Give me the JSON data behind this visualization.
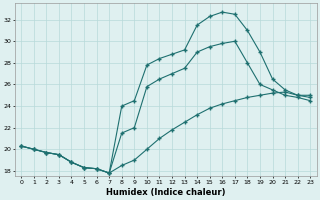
{
  "title": "",
  "xlabel": "Humidex (Indice chaleur)",
  "xlim": [
    -0.5,
    23.5
  ],
  "ylim": [
    17.5,
    33.5
  ],
  "yticks": [
    18,
    20,
    22,
    24,
    26,
    28,
    30,
    32
  ],
  "xticks": [
    0,
    1,
    2,
    3,
    4,
    5,
    6,
    7,
    8,
    9,
    10,
    11,
    12,
    13,
    14,
    15,
    16,
    17,
    18,
    19,
    20,
    21,
    22,
    23
  ],
  "background_color": "#dff0f0",
  "grid_color": "#b8dada",
  "line_color": "#1e7070",
  "line1_x": [
    0,
    1,
    2,
    3,
    4,
    5,
    6,
    7,
    8,
    9,
    10,
    11,
    12,
    13,
    14,
    15,
    16,
    17,
    18,
    19,
    20,
    21,
    22,
    23
  ],
  "line1_y": [
    20.3,
    20.0,
    19.7,
    19.5,
    18.8,
    18.3,
    18.2,
    17.8,
    18.5,
    19.0,
    20.0,
    21.0,
    21.8,
    22.5,
    23.2,
    23.8,
    24.2,
    24.5,
    24.8,
    25.0,
    25.2,
    25.3,
    25.0,
    25.0
  ],
  "line2_x": [
    0,
    1,
    2,
    3,
    4,
    5,
    6,
    7,
    8,
    9,
    10,
    11,
    12,
    13,
    14,
    15,
    16,
    17,
    18,
    19,
    20,
    21,
    22,
    23
  ],
  "line2_y": [
    20.3,
    20.0,
    19.7,
    19.5,
    18.8,
    18.3,
    18.2,
    17.8,
    24.0,
    24.5,
    27.8,
    28.4,
    28.8,
    29.2,
    31.5,
    32.3,
    32.7,
    32.5,
    31.0,
    29.0,
    26.5,
    25.5,
    25.0,
    24.8
  ],
  "line3_x": [
    0,
    1,
    2,
    3,
    4,
    5,
    6,
    7,
    8,
    9,
    10,
    11,
    12,
    13,
    14,
    15,
    16,
    17,
    18,
    19,
    20,
    21,
    22,
    23
  ],
  "line3_y": [
    20.3,
    20.0,
    19.7,
    19.5,
    18.8,
    18.3,
    18.2,
    17.8,
    21.5,
    22.0,
    25.8,
    26.5,
    27.0,
    27.5,
    29.0,
    29.5,
    29.8,
    30.0,
    28.0,
    26.0,
    25.5,
    25.0,
    24.8,
    24.5
  ]
}
